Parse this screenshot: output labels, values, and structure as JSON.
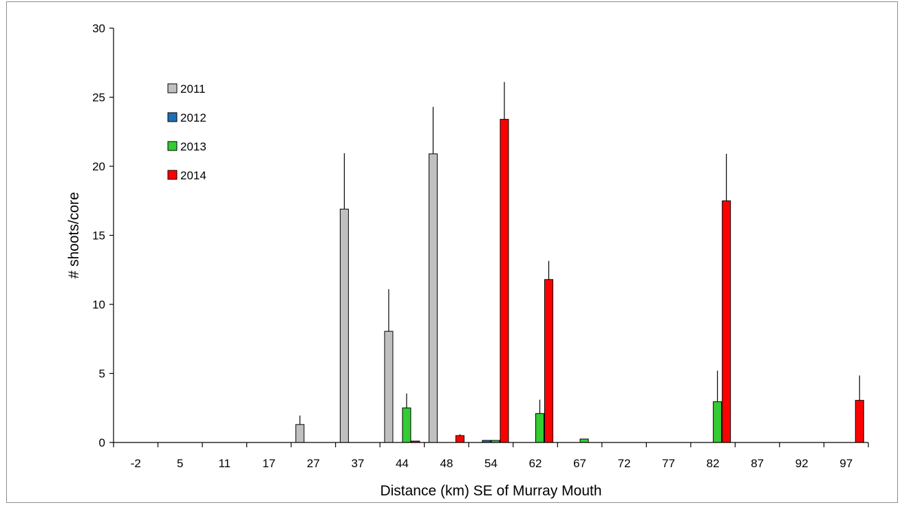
{
  "chart_data": {
    "type": "bar",
    "title": "",
    "xlabel": "Distance (km) SE of Murray Mouth",
    "ylabel": "# shoots/core",
    "ylim": [
      0,
      30
    ],
    "yticks": [
      0,
      5,
      10,
      15,
      20,
      25,
      30
    ],
    "grid": false,
    "legend_position": "top-left",
    "categories": [
      "-2",
      "5",
      "11",
      "17",
      "27",
      "37",
      "44",
      "48",
      "54",
      "62",
      "67",
      "72",
      "77",
      "82",
      "87",
      "92",
      "97"
    ],
    "series": [
      {
        "name": "2011",
        "color": "#c0c0c0",
        "values": [
          0,
          0,
          0,
          0,
          1.3,
          16.9,
          8.05,
          20.9,
          0,
          0,
          0,
          0,
          0,
          0,
          0,
          0,
          0
        ],
        "errors": [
          0,
          0,
          0,
          0,
          0.65,
          4.05,
          3.05,
          3.4,
          0,
          0,
          0,
          0,
          0,
          0,
          0,
          0,
          0
        ]
      },
      {
        "name": "2012",
        "color": "#1f6fb4",
        "values": [
          0,
          0,
          0,
          0,
          0,
          0,
          0,
          0,
          0.15,
          0,
          0,
          0,
          0,
          0,
          0,
          0,
          0
        ],
        "errors": [
          0,
          0,
          0,
          0,
          0,
          0,
          0,
          0,
          0,
          0,
          0,
          0,
          0,
          0,
          0,
          0,
          0
        ]
      },
      {
        "name": "2013",
        "color": "#33cc33",
        "values": [
          0,
          0,
          0,
          0,
          0,
          0,
          2.5,
          0,
          0.15,
          2.1,
          0.25,
          0,
          0,
          2.95,
          0,
          0,
          0
        ],
        "errors": [
          0,
          0,
          0,
          0,
          0,
          0,
          1.05,
          0,
          0,
          1.0,
          0,
          0,
          0,
          2.25,
          0,
          0,
          0
        ]
      },
      {
        "name": "2014",
        "color": "#ff0000",
        "values": [
          0,
          0,
          0,
          0,
          0,
          0,
          0.1,
          0.5,
          23.4,
          11.8,
          0,
          0,
          0,
          17.5,
          0,
          0,
          3.05
        ],
        "errors": [
          0,
          0,
          0,
          0,
          0,
          0,
          0,
          0.1,
          2.7,
          1.35,
          0,
          0,
          0,
          3.4,
          0,
          0,
          1.8
        ]
      }
    ]
  }
}
